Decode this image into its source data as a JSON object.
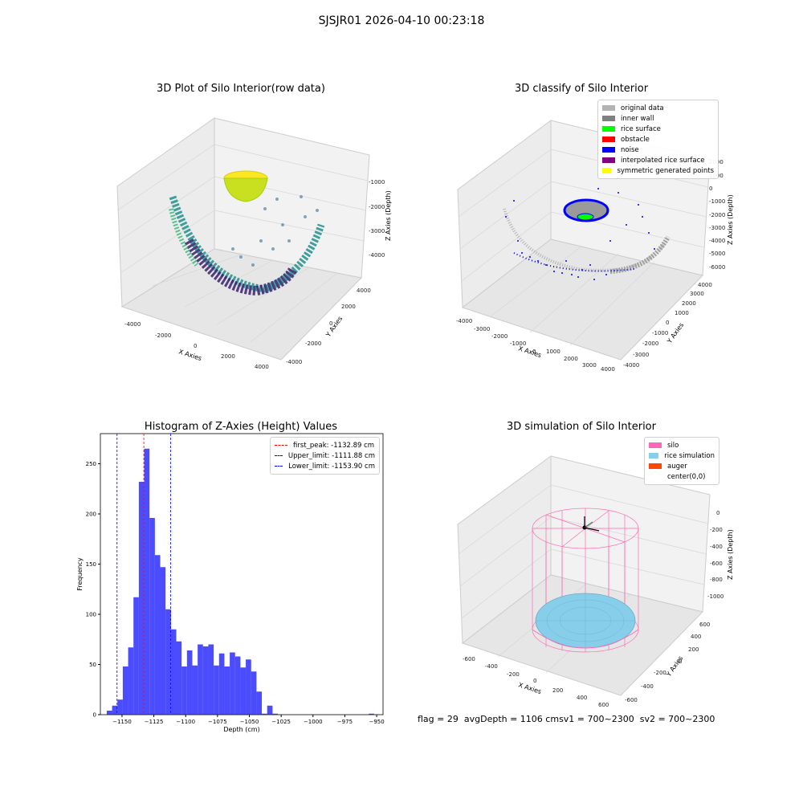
{
  "figure": {
    "title": "SJSJR01 2026-04-10 00:23:18",
    "footer": {
      "flag": "flag = 29",
      "avg": "avgDepth = 1106 cm",
      "sv1": "sv1 = 700~2300",
      "sv2": "sv2 = 700~2300"
    }
  },
  "chart_data": [
    {
      "type": "scatter",
      "title": "3D Plot of Silo Interior(row data)",
      "xlabel": "X Axies",
      "ylabel": "Y Axies",
      "zlabel": "Z Axies (Depth)",
      "x_ticks": [
        "-4000",
        "-2000",
        "0",
        "2000",
        "4000"
      ],
      "y_ticks": [
        "-4000",
        "-2000",
        "0",
        "2000",
        "4000"
      ],
      "z_ticks": [
        "-1000",
        "-2000",
        "-3000",
        "-4000"
      ],
      "colormap": "viridis",
      "colors": {
        "low": "#440154",
        "mid": "#21918c",
        "high": "#fde725"
      }
    },
    {
      "type": "scatter",
      "title": "3D classify of Silo Interior",
      "xlabel": "X Axies",
      "ylabel": "Y Axies",
      "zlabel": "Z Axies (Depth)",
      "x_ticks": [
        "-4000",
        "-3000",
        "-2000",
        "-1000",
        "0",
        "1000",
        "2000",
        "3000",
        "4000"
      ],
      "y_ticks": [
        "-4000",
        "-3000",
        "-2000",
        "-1000",
        "0",
        "1000",
        "2000",
        "3000",
        "4000"
      ],
      "z_ticks": [
        "2000",
        "1000",
        "0",
        "-1000",
        "-2000",
        "-3000",
        "-4000",
        "-5000",
        "-6000"
      ],
      "legend": [
        {
          "label": "original data",
          "color": "#b3b3b3"
        },
        {
          "label": "inner wall",
          "color": "#808080"
        },
        {
          "label": "rice surface",
          "color": "#00ff00"
        },
        {
          "label": "obstacle",
          "color": "#ff0000"
        },
        {
          "label": "noise",
          "color": "#0000ff"
        },
        {
          "label": "interpolated rice surface",
          "color": "#800080"
        },
        {
          "label": "symmetric generated points",
          "color": "#ffff00"
        }
      ]
    },
    {
      "type": "bar",
      "title": "Histogram of Z-Axies (Height) Values",
      "xlabel": "Depth (cm)",
      "ylabel": "Frequency",
      "xlim": [
        -1167,
        -945
      ],
      "ylim": [
        0,
        280
      ],
      "x_ticks": [
        -1150,
        -1125,
        -1100,
        -1075,
        -1050,
        -1025,
        -1000,
        -975,
        -950
      ],
      "x_tick_labels": [
        "−1150",
        "−1125",
        "−1100",
        "−1075",
        "−1050",
        "−1025",
        "−1000",
        "−975",
        "−950"
      ],
      "y_ticks": [
        0,
        50,
        100,
        150,
        200,
        250
      ],
      "y_tick_labels": [
        "0",
        "50",
        "100",
        "150",
        "200",
        "250"
      ],
      "bin_start": -1162,
      "bin_width": 4.2,
      "values": [
        4,
        9,
        15,
        48,
        67,
        117,
        232,
        265,
        196,
        159,
        147,
        105,
        85,
        73,
        48,
        64,
        49,
        70,
        68,
        70,
        49,
        61,
        48,
        62,
        58,
        47,
        55,
        43,
        23,
        1,
        9,
        1,
        0,
        0,
        0,
        0,
        0,
        0,
        0,
        0,
        0,
        0,
        0,
        0,
        0,
        0,
        0,
        0,
        0,
        1
      ],
      "bar_color": "#0000ff",
      "vlines": [
        {
          "x": -1132.89,
          "color": "#ff0000",
          "label": "first_peak: -1132.89 cm"
        },
        {
          "x": -1111.88,
          "color": "#0000ff",
          "label": "Upper_limit: -1111.88 cm"
        },
        {
          "x": -1153.9,
          "color": "#0000ff",
          "label": "Lower_limit: -1153.90 cm"
        }
      ]
    },
    {
      "type": "scatter",
      "title": "3D simulation of Silo Interior",
      "xlabel": "X Axies",
      "ylabel": "Y Axies",
      "zlabel": "Z Axies (Depth)",
      "x_ticks": [
        "-600",
        "-400",
        "-200",
        "0",
        "200",
        "400",
        "600"
      ],
      "y_ticks": [
        "-600",
        "-400",
        "-200",
        "0",
        "200",
        "400",
        "600"
      ],
      "z_ticks": [
        "0",
        "-200",
        "-400",
        "-600",
        "-800",
        "-1000"
      ],
      "legend": [
        {
          "label": "silo",
          "color": "#ff69b4"
        },
        {
          "label": "rice simulation",
          "color": "#87ceeb"
        },
        {
          "label": "auger",
          "color": "#ff4500"
        },
        {
          "label": "center(0,0)",
          "color": ""
        }
      ]
    }
  ]
}
